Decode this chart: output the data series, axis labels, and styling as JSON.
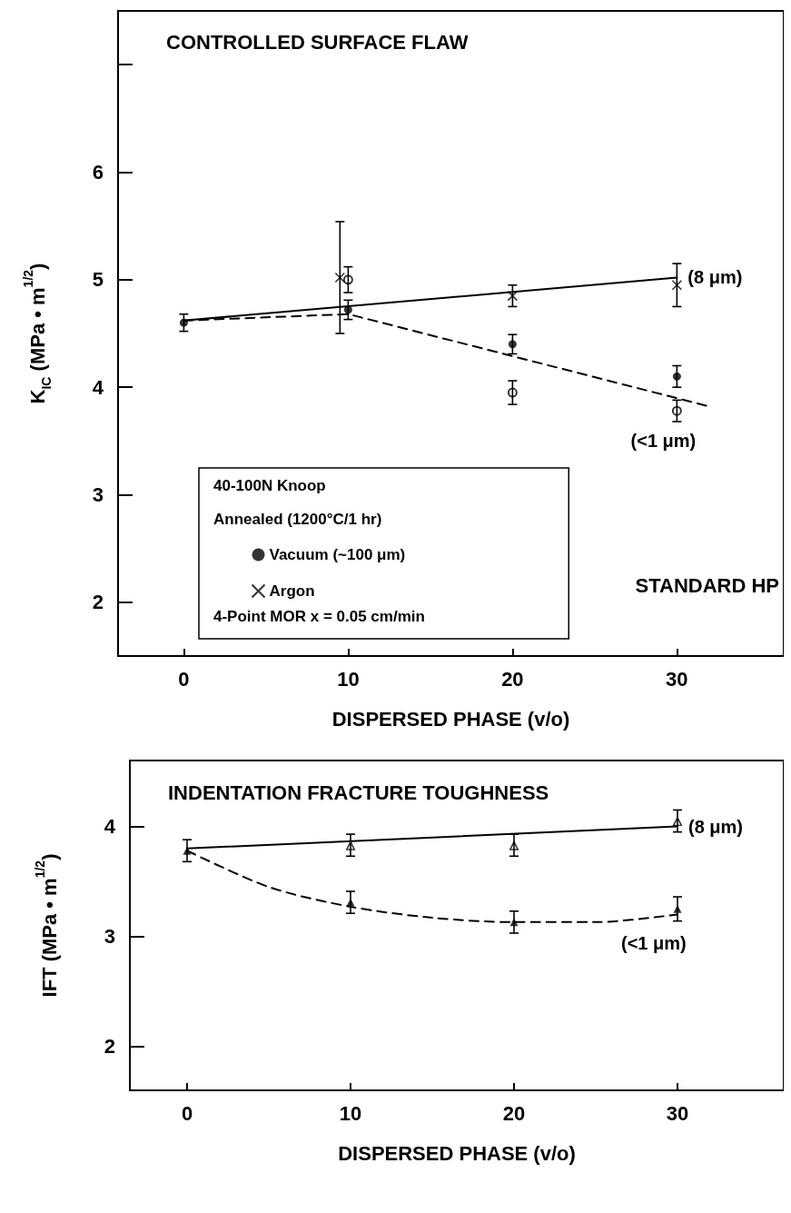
{
  "chart_data": [
    {
      "type": "scatter",
      "title": "CONTROLLED SURFACE FLAW",
      "xlabel": "DISPERSED PHASE (v/o)",
      "ylabel": "K$_{IC}$ (MPa • m$^{1/2}$)",
      "xlim": [
        -4,
        36.5
      ],
      "xticks": [
        0,
        10,
        20,
        30
      ],
      "ylim": [
        1.5,
        7.5
      ],
      "yticks": [
        2,
        3,
        4,
        5,
        6,
        {
          "value": 7,
          "label": null
        }
      ],
      "grid": false,
      "legend": "bottom left",
      "annotations": [
        "40-100N Knoop",
        "Annealed (1200°C/1 hr)",
        "4-Point MOR x = 0.05 cm/min",
        "STANDARD HP"
      ],
      "series": [
        {
          "name": "Vacuum (~100 μm)",
          "type": "scatter",
          "marker": "circle",
          "color": "#000000",
          "x": [
            0,
            10,
            20,
            30
          ],
          "values": [
            4.6,
            4.72,
            4.4,
            4.1
          ],
          "errors": [
            0.08,
            0.09,
            0.09,
            0.1
          ]
        },
        {
          "name": "Argon",
          "type": "scatter",
          "marker": "cross",
          "color": "#000000",
          "x": [
            9.5,
            20,
            30
          ],
          "values": [
            5.02,
            4.85,
            4.95
          ],
          "errors": [
            0.52,
            0.1,
            0.2
          ]
        },
        {
          "type": "scatter",
          "marker": "circle-open",
          "color": "#000000",
          "x": [
            10,
            20,
            30
          ],
          "values": [
            5.0,
            3.95,
            3.78
          ],
          "errors": [
            0.12,
            0.11,
            0.1
          ]
        },
        {
          "name": "(8 μm)",
          "type": "line",
          "marker": "none",
          "line_style": "solid",
          "color": "#000000",
          "x": [
            0,
            30
          ],
          "values": [
            4.62,
            5.02
          ]
        },
        {
          "name": "(<1 μm)",
          "type": "line",
          "marker": "none",
          "line_style": "dashed",
          "color": "#000000",
          "x": [
            0,
            10,
            32
          ],
          "values": [
            4.62,
            4.68,
            3.82
          ]
        }
      ]
    },
    {
      "type": "scatter",
      "title": "INDENTATION FRACTURE TOUGHNESS",
      "xlabel": "DISPERSED PHASE (v/o)",
      "ylabel": "IFT (MPa • m$^{1/2}$)",
      "xlim": [
        -3.5,
        36.5
      ],
      "xticks": [
        0,
        10,
        20,
        30
      ],
      "ylim": [
        1.6,
        4.6
      ],
      "yticks": [
        2,
        3,
        4
      ],
      "grid": false,
      "legend": false,
      "series": [
        {
          "type": "scatter",
          "marker": "triangle-open",
          "color": "#000000",
          "x": [
            10,
            20,
            30
          ],
          "values": [
            3.83,
            3.83,
            4.05
          ],
          "errors": [
            0.1,
            0.1,
            0.1
          ]
        },
        {
          "type": "scatter",
          "marker": "triangle",
          "color": "#000000",
          "x": [
            0,
            10,
            20,
            30
          ],
          "values": [
            3.78,
            3.31,
            3.13,
            3.25
          ],
          "errors": [
            0.1,
            0.1,
            0.1,
            0.11
          ]
        },
        {
          "name": "(8 μm)",
          "type": "line",
          "marker": "none",
          "line_style": "solid",
          "color": "#000000",
          "x": [
            0,
            30
          ],
          "values": [
            3.8,
            4.0
          ]
        },
        {
          "name": "(<1 μm)",
          "type": "line",
          "marker": "none",
          "line_style": "dashed",
          "color": "#000000",
          "x": [
            0,
            5,
            10,
            15,
            20,
            25,
            30
          ],
          "values": [
            3.78,
            3.45,
            3.27,
            3.17,
            3.13,
            3.13,
            3.2
          ]
        }
      ]
    }
  ]
}
